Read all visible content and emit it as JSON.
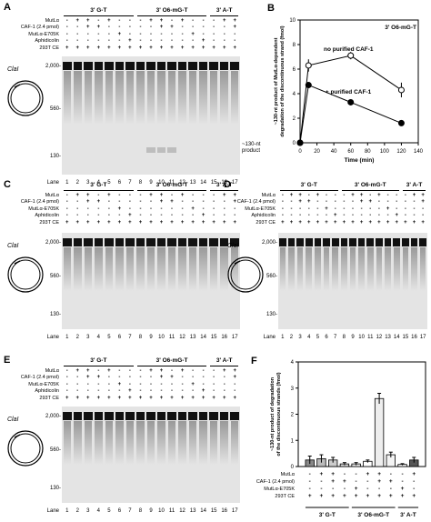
{
  "gel_panels": [
    {
      "id": "A",
      "x": 0,
      "y": 0,
      "gel_x": 68,
      "gel_y": 62,
      "gel_w": 196,
      "gel_h": 130,
      "ctop": 20,
      "has_product": true
    },
    {
      "id": "C",
      "x": 0,
      "y": 195,
      "gel_x": 68,
      "gel_y": 256,
      "gel_w": 196,
      "gel_h": 106,
      "ctop": 212,
      "has_product": false
    },
    {
      "id": "D",
      "x": 242,
      "y": 195,
      "gel_x": 306,
      "gel_y": 256,
      "gel_w": 164,
      "gel_h": 106,
      "ctop": 212,
      "has_product": false
    },
    {
      "id": "E",
      "x": 0,
      "y": 388,
      "gel_x": 68,
      "gel_y": 447,
      "gel_w": 196,
      "gel_h": 106,
      "ctop": 405,
      "has_product": false
    }
  ],
  "groups": [
    "3' G-T",
    "3' O6-mG-T",
    "3' A-T"
  ],
  "row_labels": [
    "MutLα",
    "CAF-1 (2.4 pmol)",
    "MutLα-E705K",
    "Aphidicolin",
    "293T CE"
  ],
  "signs": [
    [
      "-",
      "+",
      "+",
      "-",
      "+",
      "-",
      "-",
      "-",
      "+",
      "+",
      "-",
      "+",
      "-",
      "-",
      "-",
      "+",
      "+"
    ],
    [
      "-",
      "-",
      "+",
      "+",
      "-",
      "-",
      "-",
      "-",
      "-",
      "+",
      "+",
      "-",
      "-",
      "-",
      "-",
      "-",
      "+"
    ],
    [
      "-",
      "-",
      "-",
      "-",
      "-",
      "+",
      "-",
      "-",
      "-",
      "-",
      "-",
      "-",
      "+",
      "-",
      "-",
      "-",
      "-"
    ],
    [
      "-",
      "-",
      "-",
      "-",
      "-",
      "-",
      "+",
      "-",
      "-",
      "-",
      "-",
      "-",
      "-",
      "+",
      "-",
      "-",
      "-"
    ],
    [
      "+",
      "+",
      "+",
      "+",
      "+",
      "+",
      "+",
      "+",
      "+",
      "+",
      "+",
      "+",
      "+",
      "+",
      "+",
      "+",
      "+"
    ]
  ],
  "lanes": [
    "1",
    "2",
    "3",
    "4",
    "5",
    "6",
    "7",
    "8",
    "9",
    "10",
    "11",
    "12",
    "13",
    "14",
    "15",
    "16",
    "17"
  ],
  "lane_label": "Lane",
  "mw_markers": [
    "2,000-",
    "560-",
    "130-"
  ],
  "product_label": "~130-nt\nproduct",
  "site_label": "ClaI",
  "panel_B": {
    "label": "B",
    "ylabel": "~130-nt product of MutLα-dependent\ndegradation of the discontinuous strand (fmol)",
    "xlabel": "Time (min)",
    "inset": "3' O6-mG-T",
    "series_labels": [
      "no purified CAF-1",
      "+ purified CAF-1"
    ]
  },
  "panel_F": {
    "label": "F",
    "ylabel": "~130-nt product of degradation\nof the discontinuous strands (fmol)",
    "row_labels": [
      "MutLα",
      "CAF-1 (2.4 pmol)",
      "MutLα-E705K",
      "293T CE"
    ],
    "signs": [
      [
        "-",
        "+",
        "+",
        "-",
        "-",
        "+",
        "+",
        "-",
        "-",
        "+"
      ],
      [
        "-",
        "-",
        "+",
        "+",
        "-",
        "-",
        "+",
        "+",
        "-",
        "-"
      ],
      [
        "-",
        "-",
        "-",
        "-",
        "+",
        "-",
        "-",
        "-",
        "+",
        "-"
      ],
      [
        "+",
        "+",
        "+",
        "+",
        "+",
        "+",
        "+",
        "+",
        "+",
        "+"
      ]
    ],
    "groups": [
      "3' G-T",
      "3' O6-mG-T",
      "3' A-T"
    ]
  },
  "chart_data": [
    {
      "type": "line",
      "title": "B",
      "xlabel": "Time (min)",
      "ylabel": "~130-nt product of MutLα-dependent degradation of the discontinuous strand (fmol)",
      "xlim": [
        0,
        140
      ],
      "ylim": [
        0,
        10
      ],
      "xticks": [
        0,
        20,
        40,
        60,
        80,
        100,
        120,
        140
      ],
      "yticks": [
        0,
        2,
        4,
        6,
        8,
        10
      ],
      "series": [
        {
          "name": "no purified CAF-1",
          "marker": "open-circle",
          "x": [
            0,
            10,
            60,
            120
          ],
          "y": [
            0,
            6.3,
            7.1,
            4.3
          ],
          "err": [
            0,
            0.5,
            0.3,
            0.6
          ]
        },
        {
          "name": "+ purified CAF-1",
          "marker": "filled-circle",
          "x": [
            0,
            10,
            60,
            120
          ],
          "y": [
            0,
            4.7,
            3.3,
            1.6
          ],
          "err": [
            0,
            0.2,
            0.2,
            0.2
          ]
        }
      ]
    },
    {
      "type": "bar",
      "title": "F",
      "ylabel": "~130-nt product of degradation of the discontinuous strands (fmol)",
      "ylim": [
        0,
        4
      ],
      "yticks": [
        0,
        1,
        2,
        3,
        4
      ],
      "values": [
        0.25,
        0.3,
        0.25,
        0.1,
        0.1,
        0.2,
        2.6,
        0.45,
        0.08,
        0.25
      ],
      "err": [
        0.15,
        0.15,
        0.1,
        0.05,
        0.05,
        0.05,
        0.2,
        0.1,
        0.03,
        0.1
      ],
      "fills": [
        "#888888",
        "#bbbbbb",
        "#cccccc",
        "#dddddd",
        "#eeeeee",
        "#ffffff",
        "#eeeeee",
        "#f4f4f4",
        "#ffffff",
        "#555555"
      ]
    }
  ]
}
